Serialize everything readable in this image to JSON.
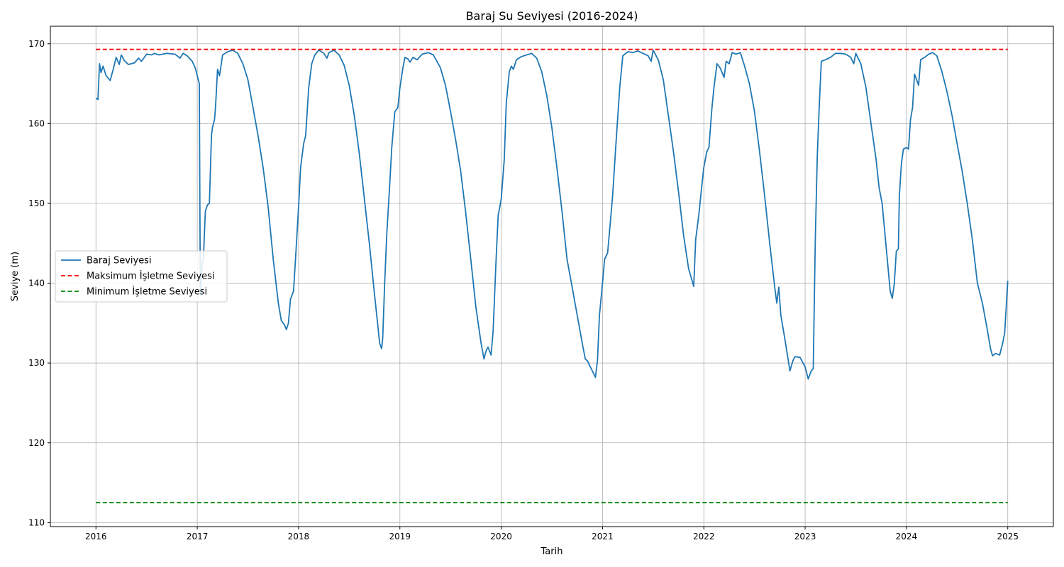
{
  "chart_data": {
    "type": "line",
    "title": "Baraj Su Seviyesi (2016-2024)",
    "xlabel": "Tarih",
    "ylabel": "Seviye (m)",
    "xlim": [
      2015.55,
      2025.45
    ],
    "ylim": [
      109.5,
      172.2
    ],
    "x_ticks": [
      2016,
      2017,
      2018,
      2019,
      2020,
      2021,
      2022,
      2023,
      2024,
      2025
    ],
    "x_tick_labels": [
      "2016",
      "2017",
      "2018",
      "2019",
      "2020",
      "2021",
      "2022",
      "2023",
      "2024",
      "2025"
    ],
    "y_ticks": [
      110,
      120,
      130,
      140,
      150,
      160,
      170
    ],
    "y_tick_labels": [
      "110",
      "120",
      "130",
      "140",
      "150",
      "160",
      "170"
    ],
    "grid": true,
    "legend_position": "center-left",
    "series": [
      {
        "name": "Baraj Seviyesi",
        "color": "#1f77b4",
        "style": "solid",
        "points": [
          [
            2016.0,
            163.2
          ],
          [
            2016.02,
            163.0
          ],
          [
            2016.035,
            167.5
          ],
          [
            2016.05,
            166.4
          ],
          [
            2016.07,
            167.2
          ],
          [
            2016.1,
            166.0
          ],
          [
            2016.14,
            165.4
          ],
          [
            2016.17,
            166.8
          ],
          [
            2016.2,
            168.3
          ],
          [
            2016.23,
            167.4
          ],
          [
            2016.25,
            168.6
          ],
          [
            2016.28,
            167.9
          ],
          [
            2016.32,
            167.4
          ],
          [
            2016.38,
            167.6
          ],
          [
            2016.42,
            168.2
          ],
          [
            2016.45,
            167.8
          ],
          [
            2016.5,
            168.7
          ],
          [
            2016.55,
            168.6
          ],
          [
            2016.58,
            168.8
          ],
          [
            2016.62,
            168.6
          ],
          [
            2016.7,
            168.8
          ],
          [
            2016.78,
            168.7
          ],
          [
            2016.83,
            168.2
          ],
          [
            2016.86,
            168.8
          ],
          [
            2016.9,
            168.5
          ],
          [
            2016.95,
            167.8
          ],
          [
            2016.98,
            167.0
          ],
          [
            2017.0,
            166.0
          ],
          [
            2017.02,
            165.0
          ],
          [
            2017.03,
            138.5
          ],
          [
            2017.05,
            142.5
          ],
          [
            2017.06,
            143.0
          ],
          [
            2017.08,
            149.0
          ],
          [
            2017.1,
            149.8
          ],
          [
            2017.12,
            150.0
          ],
          [
            2017.14,
            158.5
          ],
          [
            2017.15,
            159.5
          ],
          [
            2017.17,
            160.5
          ],
          [
            2017.18,
            162.0
          ],
          [
            2017.2,
            166.8
          ],
          [
            2017.22,
            166.0
          ],
          [
            2017.25,
            168.6
          ],
          [
            2017.3,
            169.0
          ],
          [
            2017.35,
            169.2
          ],
          [
            2017.4,
            168.8
          ],
          [
            2017.45,
            167.5
          ],
          [
            2017.5,
            165.5
          ],
          [
            2017.55,
            162.0
          ],
          [
            2017.6,
            158.5
          ],
          [
            2017.65,
            154.5
          ],
          [
            2017.7,
            149.5
          ],
          [
            2017.75,
            143.0
          ],
          [
            2017.8,
            137.5
          ],
          [
            2017.83,
            135.3
          ],
          [
            2017.86,
            134.8
          ],
          [
            2017.88,
            134.2
          ],
          [
            2017.9,
            135.0
          ],
          [
            2017.92,
            138.0
          ],
          [
            2017.95,
            139.0
          ],
          [
            2017.97,
            143.0
          ],
          [
            2018.0,
            149.5
          ],
          [
            2018.02,
            154.5
          ],
          [
            2018.05,
            157.5
          ],
          [
            2018.07,
            158.5
          ],
          [
            2018.1,
            164.5
          ],
          [
            2018.13,
            167.5
          ],
          [
            2018.16,
            168.6
          ],
          [
            2018.2,
            169.2
          ],
          [
            2018.25,
            168.8
          ],
          [
            2018.28,
            168.2
          ],
          [
            2018.3,
            168.9
          ],
          [
            2018.35,
            169.2
          ],
          [
            2018.4,
            168.6
          ],
          [
            2018.45,
            167.3
          ],
          [
            2018.5,
            164.8
          ],
          [
            2018.55,
            161.0
          ],
          [
            2018.6,
            156.2
          ],
          [
            2018.65,
            150.5
          ],
          [
            2018.7,
            144.8
          ],
          [
            2018.75,
            138.5
          ],
          [
            2018.78,
            135.0
          ],
          [
            2018.8,
            132.5
          ],
          [
            2018.82,
            131.8
          ],
          [
            2018.83,
            133.0
          ],
          [
            2018.85,
            140.0
          ],
          [
            2018.87,
            146.0
          ],
          [
            2018.9,
            152.5
          ],
          [
            2018.92,
            157.0
          ],
          [
            2018.95,
            161.5
          ],
          [
            2018.98,
            162.0
          ],
          [
            2019.0,
            164.5
          ],
          [
            2019.03,
            167.0
          ],
          [
            2019.05,
            168.3
          ],
          [
            2019.08,
            168.1
          ],
          [
            2019.1,
            167.7
          ],
          [
            2019.13,
            168.3
          ],
          [
            2019.17,
            168.0
          ],
          [
            2019.22,
            168.7
          ],
          [
            2019.28,
            168.9
          ],
          [
            2019.33,
            168.6
          ],
          [
            2019.4,
            167.0
          ],
          [
            2019.45,
            164.8
          ],
          [
            2019.5,
            161.5
          ],
          [
            2019.55,
            158.0
          ],
          [
            2019.6,
            154.0
          ],
          [
            2019.65,
            148.8
          ],
          [
            2019.7,
            143.0
          ],
          [
            2019.75,
            137.0
          ],
          [
            2019.8,
            132.6
          ],
          [
            2019.83,
            130.5
          ],
          [
            2019.85,
            131.5
          ],
          [
            2019.87,
            132.0
          ],
          [
            2019.9,
            131.0
          ],
          [
            2019.92,
            134.0
          ],
          [
            2019.95,
            143.0
          ],
          [
            2019.97,
            148.5
          ],
          [
            2020.0,
            150.5
          ],
          [
            2020.03,
            155.5
          ],
          [
            2020.05,
            162.5
          ],
          [
            2020.08,
            166.5
          ],
          [
            2020.1,
            167.2
          ],
          [
            2020.12,
            166.8
          ],
          [
            2020.15,
            168.0
          ],
          [
            2020.2,
            168.4
          ],
          [
            2020.25,
            168.6
          ],
          [
            2020.3,
            168.8
          ],
          [
            2020.35,
            168.2
          ],
          [
            2020.4,
            166.5
          ],
          [
            2020.45,
            163.5
          ],
          [
            2020.5,
            159.5
          ],
          [
            2020.55,
            154.5
          ],
          [
            2020.6,
            149.0
          ],
          [
            2020.65,
            143.0
          ],
          [
            2020.7,
            139.5
          ],
          [
            2020.75,
            136.0
          ],
          [
            2020.8,
            132.5
          ],
          [
            2020.83,
            130.5
          ],
          [
            2020.85,
            130.3
          ],
          [
            2020.88,
            129.5
          ],
          [
            2020.9,
            129.0
          ],
          [
            2020.93,
            128.2
          ],
          [
            2020.95,
            130.3
          ],
          [
            2020.97,
            136.0
          ],
          [
            2021.0,
            140.0
          ],
          [
            2021.02,
            143.0
          ],
          [
            2021.05,
            143.8
          ],
          [
            2021.08,
            148.0
          ],
          [
            2021.1,
            151.0
          ],
          [
            2021.13,
            157.0
          ],
          [
            2021.17,
            164.5
          ],
          [
            2021.2,
            168.5
          ],
          [
            2021.25,
            169.0
          ],
          [
            2021.3,
            168.9
          ],
          [
            2021.35,
            169.1
          ],
          [
            2021.4,
            168.8
          ],
          [
            2021.45,
            168.5
          ],
          [
            2021.48,
            167.8
          ],
          [
            2021.5,
            169.2
          ],
          [
            2021.55,
            168.0
          ],
          [
            2021.6,
            165.5
          ],
          [
            2021.65,
            161.0
          ],
          [
            2021.7,
            156.5
          ],
          [
            2021.75,
            151.5
          ],
          [
            2021.8,
            146.0
          ],
          [
            2021.85,
            141.8
          ],
          [
            2021.88,
            140.5
          ],
          [
            2021.9,
            139.6
          ],
          [
            2021.92,
            145.5
          ],
          [
            2021.95,
            148.5
          ],
          [
            2021.97,
            151.0
          ],
          [
            2022.0,
            154.5
          ],
          [
            2022.03,
            156.5
          ],
          [
            2022.05,
            157.0
          ],
          [
            2022.08,
            162.0
          ],
          [
            2022.1,
            164.5
          ],
          [
            2022.13,
            167.5
          ],
          [
            2022.16,
            167.0
          ],
          [
            2022.2,
            165.8
          ],
          [
            2022.22,
            167.8
          ],
          [
            2022.25,
            167.5
          ],
          [
            2022.28,
            168.9
          ],
          [
            2022.32,
            168.7
          ],
          [
            2022.36,
            168.9
          ],
          [
            2022.4,
            167.3
          ],
          [
            2022.45,
            165.0
          ],
          [
            2022.5,
            161.5
          ],
          [
            2022.55,
            156.5
          ],
          [
            2022.6,
            151.0
          ],
          [
            2022.65,
            145.0
          ],
          [
            2022.7,
            139.5
          ],
          [
            2022.72,
            137.5
          ],
          [
            2022.74,
            139.5
          ],
          [
            2022.76,
            136.0
          ],
          [
            2022.8,
            133.0
          ],
          [
            2022.85,
            129.0
          ],
          [
            2022.88,
            130.3
          ],
          [
            2022.9,
            130.8
          ],
          [
            2022.95,
            130.7
          ],
          [
            2023.0,
            129.5
          ],
          [
            2023.03,
            128.0
          ],
          [
            2023.06,
            129.0
          ],
          [
            2023.08,
            129.3
          ],
          [
            2023.1,
            145.5
          ],
          [
            2023.12,
            156.0
          ],
          [
            2023.14,
            162.5
          ],
          [
            2023.16,
            167.8
          ],
          [
            2023.2,
            168.0
          ],
          [
            2023.25,
            168.3
          ],
          [
            2023.3,
            168.8
          ],
          [
            2023.35,
            168.8
          ],
          [
            2023.4,
            168.7
          ],
          [
            2023.45,
            168.3
          ],
          [
            2023.48,
            167.5
          ],
          [
            2023.5,
            168.8
          ],
          [
            2023.55,
            167.5
          ],
          [
            2023.6,
            164.5
          ],
          [
            2023.65,
            160.0
          ],
          [
            2023.7,
            155.5
          ],
          [
            2023.73,
            152.0
          ],
          [
            2023.76,
            150.0
          ],
          [
            2023.8,
            144.5
          ],
          [
            2023.84,
            139.0
          ],
          [
            2023.86,
            138.1
          ],
          [
            2023.88,
            140.0
          ],
          [
            2023.9,
            144.0
          ],
          [
            2023.92,
            144.3
          ],
          [
            2023.93,
            151.0
          ],
          [
            2023.95,
            155.0
          ],
          [
            2023.97,
            156.8
          ],
          [
            2024.0,
            157.0
          ],
          [
            2024.02,
            156.8
          ],
          [
            2024.04,
            160.5
          ],
          [
            2024.06,
            162.0
          ],
          [
            2024.08,
            166.2
          ],
          [
            2024.12,
            164.8
          ],
          [
            2024.14,
            168.0
          ],
          [
            2024.18,
            168.3
          ],
          [
            2024.22,
            168.7
          ],
          [
            2024.26,
            168.9
          ],
          [
            2024.3,
            168.5
          ],
          [
            2024.35,
            166.5
          ],
          [
            2024.4,
            164.0
          ],
          [
            2024.45,
            161.0
          ],
          [
            2024.5,
            157.5
          ],
          [
            2024.55,
            154.0
          ],
          [
            2024.6,
            150.0
          ],
          [
            2024.65,
            145.5
          ],
          [
            2024.7,
            140.0
          ],
          [
            2024.75,
            137.5
          ],
          [
            2024.8,
            134.0
          ],
          [
            2024.83,
            131.8
          ],
          [
            2024.85,
            130.9
          ],
          [
            2024.88,
            131.2
          ],
          [
            2024.92,
            131.0
          ],
          [
            2024.95,
            132.5
          ],
          [
            2024.97,
            133.8
          ],
          [
            2025.0,
            140.3
          ]
        ]
      },
      {
        "name": "Maksimum İşletme Seviyesi",
        "color": "#ff0000",
        "style": "dashed",
        "points": [
          [
            2016.0,
            169.3
          ],
          [
            2025.0,
            169.3
          ]
        ]
      },
      {
        "name": "Minimum İşletme Seviyesi",
        "color": "#008000",
        "style": "dashed",
        "points": [
          [
            2016.0,
            112.5
          ],
          [
            2025.0,
            112.5
          ]
        ]
      }
    ]
  }
}
